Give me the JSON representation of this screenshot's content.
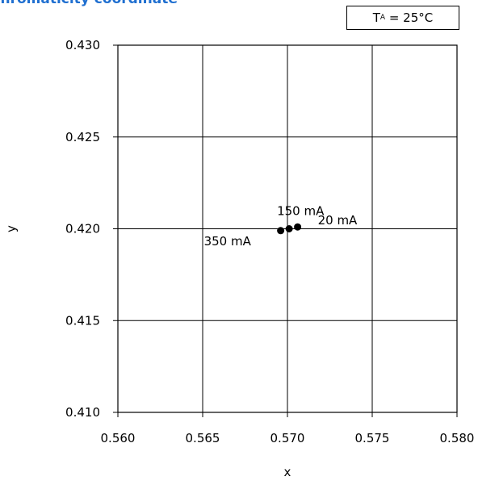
{
  "title": "Chromaticity coordinate",
  "condition": {
    "symbol": "T",
    "subscript": "A",
    "value": " = 25°C"
  },
  "chart_data": {
    "type": "scatter",
    "title": "Chromaticity coordinate",
    "xlabel": "x",
    "ylabel": "y",
    "xlim": [
      0.56,
      0.58
    ],
    "ylim": [
      0.41,
      0.43
    ],
    "xticks": [
      "0.560",
      "0.565",
      "0.570",
      "0.575",
      "0.580"
    ],
    "yticks": [
      "0.410",
      "0.415",
      "0.420",
      "0.425",
      "0.430"
    ],
    "grid": true,
    "colors": {
      "marker": "#000000",
      "grid": "#000000",
      "title": "#1f6fd0"
    },
    "series": [
      {
        "points": [
          {
            "x": 0.5706,
            "y": 0.4201,
            "label": "20 mA"
          },
          {
            "x": 0.5701,
            "y": 0.42,
            "label": "150 mA"
          },
          {
            "x": 0.5696,
            "y": 0.4199,
            "label": "350 mA"
          }
        ]
      }
    ]
  }
}
